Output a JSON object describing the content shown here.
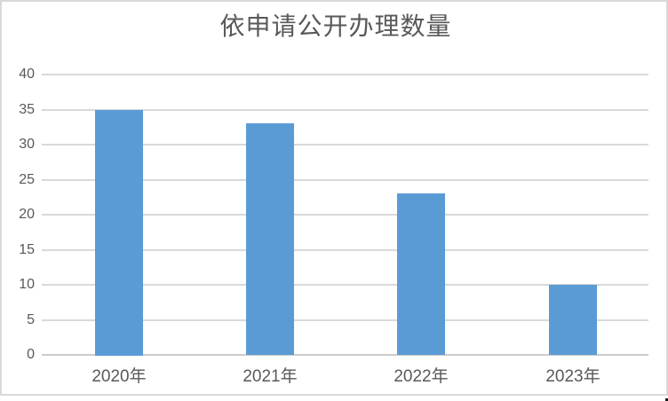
{
  "window": {
    "background": "#ffffff",
    "border_color": "#d9d9d9"
  },
  "chart_data": {
    "type": "bar",
    "title": "依申请公开办理数量",
    "categories": [
      "2020年",
      "2021年",
      "2022年",
      "2023年"
    ],
    "values": [
      35,
      33,
      23,
      10
    ],
    "xlabel": "",
    "ylabel": "",
    "ylim": [
      0,
      40
    ],
    "yticks": [
      0,
      5,
      10,
      15,
      20,
      25,
      30,
      35,
      40
    ],
    "grid": true,
    "legend_position": "none",
    "bar_color": "#5B9BD5",
    "gridline_color": "#d9d9d9",
    "axis_line_color": "#cccccc",
    "axis_label_color": "#595959",
    "title_color": "#595959"
  }
}
